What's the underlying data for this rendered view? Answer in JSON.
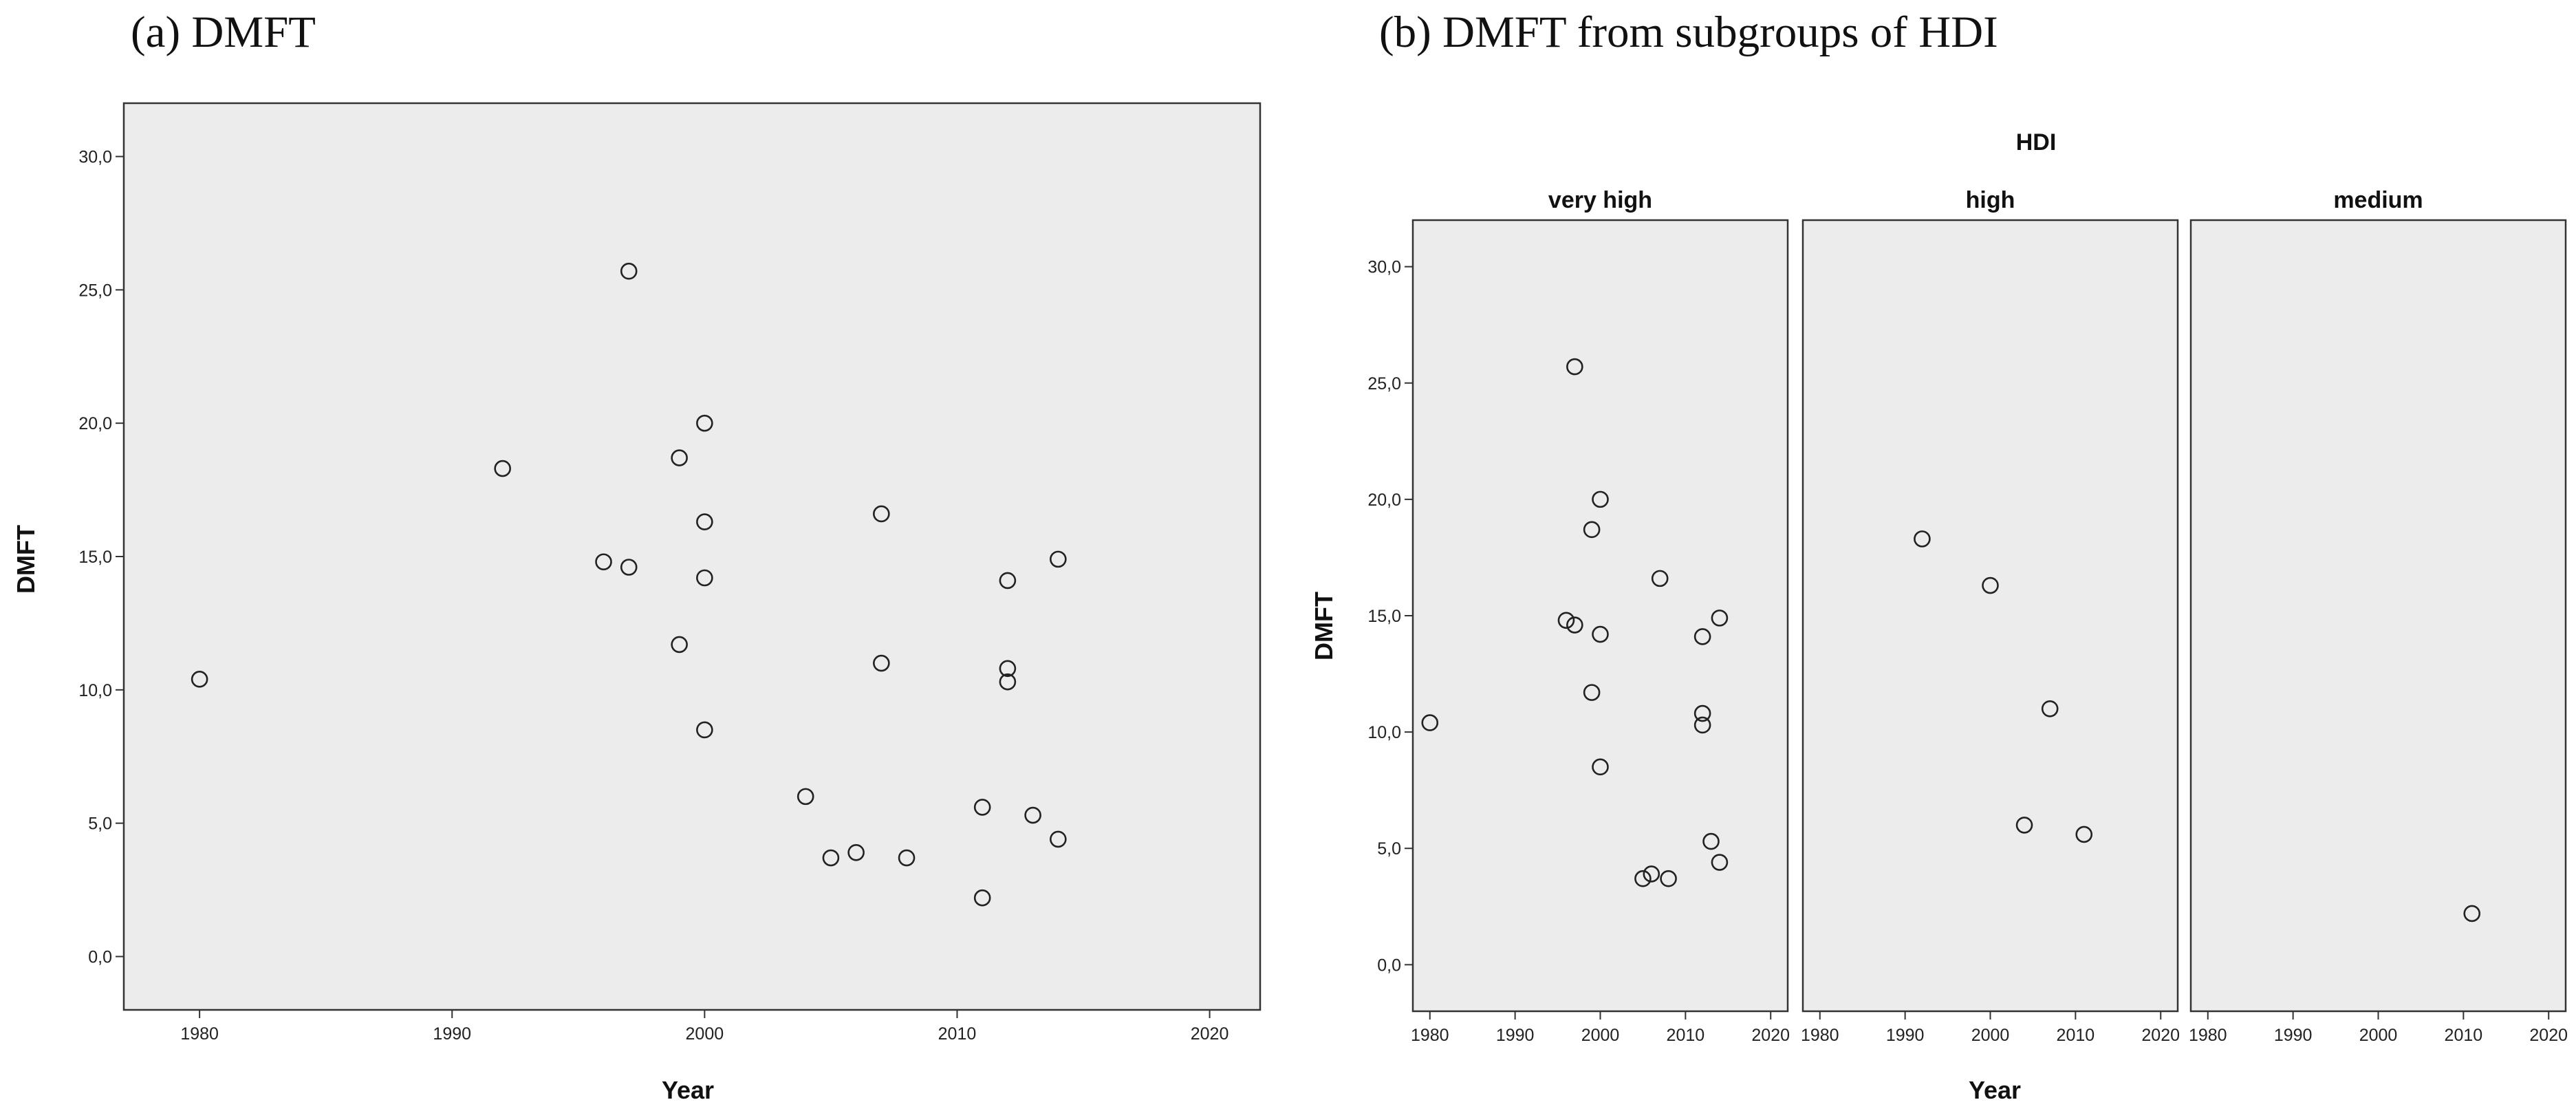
{
  "chart_data": [
    {
      "type": "scatter",
      "title": "(a) DMFT",
      "xlabel": "Year",
      "ylabel": "DMFT",
      "xlim": [
        1977,
        2022
      ],
      "ylim": [
        -2,
        32
      ],
      "xticks": [
        1980,
        1990,
        2000,
        2010,
        2020
      ],
      "xtick_labels": [
        "1980",
        "1990",
        "2000",
        "2010",
        "2020"
      ],
      "yticks": [
        0,
        5,
        10,
        15,
        20,
        25,
        30
      ],
      "ytick_labels": [
        "0,0",
        "5,0",
        "10,0",
        "15,0",
        "20,0",
        "25,0",
        "30,0"
      ],
      "grid": false,
      "points": [
        {
          "x": 1980,
          "y": 10.4
        },
        {
          "x": 1992,
          "y": 18.3
        },
        {
          "x": 1996,
          "y": 14.8
        },
        {
          "x": 1997,
          "y": 25.7
        },
        {
          "x": 1997,
          "y": 14.6
        },
        {
          "x": 1999,
          "y": 18.7
        },
        {
          "x": 1999,
          "y": 11.7
        },
        {
          "x": 2000,
          "y": 20.0
        },
        {
          "x": 2000,
          "y": 16.3
        },
        {
          "x": 2000,
          "y": 14.2
        },
        {
          "x": 2000,
          "y": 8.5
        },
        {
          "x": 2004,
          "y": 6.0
        },
        {
          "x": 2005,
          "y": 3.7
        },
        {
          "x": 2006,
          "y": 3.9
        },
        {
          "x": 2007,
          "y": 16.6
        },
        {
          "x": 2007,
          "y": 11.0
        },
        {
          "x": 2008,
          "y": 3.7
        },
        {
          "x": 2011,
          "y": 5.6
        },
        {
          "x": 2011,
          "y": 2.2
        },
        {
          "x": 2012,
          "y": 14.1
        },
        {
          "x": 2012,
          "y": 10.8
        },
        {
          "x": 2012,
          "y": 10.3
        },
        {
          "x": 2013,
          "y": 5.3
        },
        {
          "x": 2014,
          "y": 14.9
        },
        {
          "x": 2014,
          "y": 4.4
        }
      ]
    },
    {
      "type": "scatter",
      "title": "(b) DMFT from subgroups of HDI",
      "facet_title": "HDI",
      "xlabel": "Year",
      "ylabel": "DMFT",
      "xlim": [
        1978,
        2022
      ],
      "ylim": [
        -2,
        32
      ],
      "xticks": [
        1980,
        1990,
        2000,
        2010,
        2020
      ],
      "xtick_labels": [
        "1980",
        "1990",
        "2000",
        "2010",
        "2020"
      ],
      "yticks": [
        0,
        5,
        10,
        15,
        20,
        25,
        30
      ],
      "ytick_labels": [
        "0,0",
        "5,0",
        "10,0",
        "15,0",
        "20,0",
        "25,0",
        "30,0"
      ],
      "grid": false,
      "panels": [
        {
          "name": "very high",
          "points": [
            {
              "x": 1980,
              "y": 10.4
            },
            {
              "x": 1996,
              "y": 14.8
            },
            {
              "x": 1997,
              "y": 25.7
            },
            {
              "x": 1997,
              "y": 14.6
            },
            {
              "x": 1999,
              "y": 18.7
            },
            {
              "x": 1999,
              "y": 11.7
            },
            {
              "x": 2000,
              "y": 20.0
            },
            {
              "x": 2000,
              "y": 14.2
            },
            {
              "x": 2000,
              "y": 8.5
            },
            {
              "x": 2005,
              "y": 3.7
            },
            {
              "x": 2006,
              "y": 3.9
            },
            {
              "x": 2007,
              "y": 16.6
            },
            {
              "x": 2008,
              "y": 3.7
            },
            {
              "x": 2012,
              "y": 14.1
            },
            {
              "x": 2012,
              "y": 10.8
            },
            {
              "x": 2012,
              "y": 10.3
            },
            {
              "x": 2013,
              "y": 5.3
            },
            {
              "x": 2014,
              "y": 14.9
            },
            {
              "x": 2014,
              "y": 4.4
            }
          ]
        },
        {
          "name": "high",
          "points": [
            {
              "x": 1992,
              "y": 18.3
            },
            {
              "x": 2000,
              "y": 16.3
            },
            {
              "x": 2004,
              "y": 6.0
            },
            {
              "x": 2007,
              "y": 11.0
            },
            {
              "x": 2011,
              "y": 5.6
            }
          ]
        },
        {
          "name": "medium",
          "points": [
            {
              "x": 2011,
              "y": 2.2
            }
          ]
        }
      ]
    }
  ]
}
